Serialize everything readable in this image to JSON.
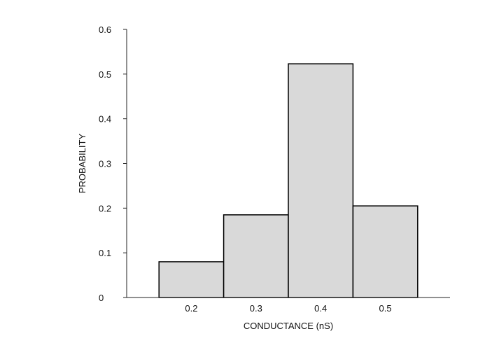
{
  "chart_data": {
    "type": "bar",
    "title": "",
    "xlabel": "CONDUCTANCE (nS)",
    "ylabel": "PROBABILITY",
    "bins": [
      {
        "x0": 0.15,
        "x1": 0.25,
        "value": 0.08
      },
      {
        "x0": 0.25,
        "x1": 0.35,
        "value": 0.185
      },
      {
        "x0": 0.35,
        "x1": 0.45,
        "value": 0.523
      },
      {
        "x0": 0.45,
        "x1": 0.55,
        "value": 0.205
      }
    ],
    "x_ticks": [
      "0.2",
      "0.3",
      "0.4",
      "0.5"
    ],
    "y_ticks": [
      "0",
      "0.1",
      "0.2",
      "0.3",
      "0.4",
      "0.5",
      "0.6"
    ],
    "xlim": [
      0.1,
      0.6
    ],
    "ylim": [
      0,
      0.6
    ],
    "grid": false,
    "bar_color": "#d9d9d9",
    "edge_color": "#000000"
  }
}
